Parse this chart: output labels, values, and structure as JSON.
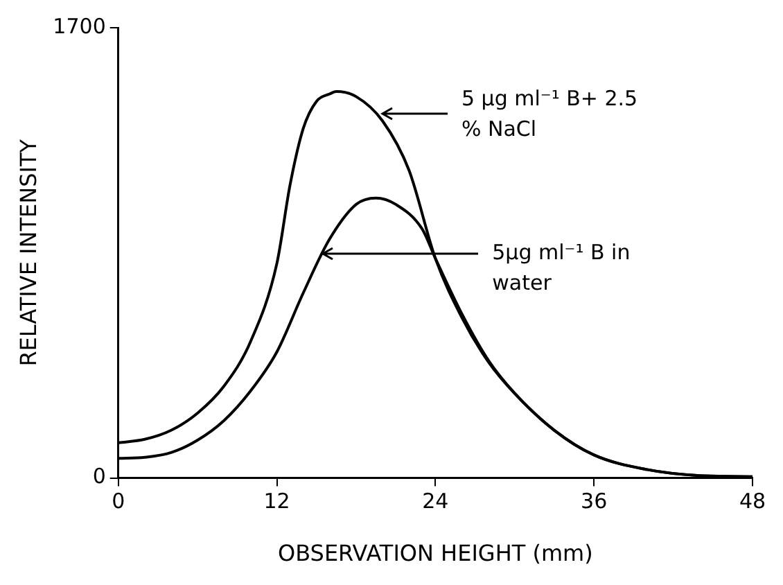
{
  "chart_data": {
    "type": "line",
    "xlabel": "OBSERVATION HEIGHT (mm)",
    "ylabel": "RELATIVE INTENSITY",
    "xlim": [
      0,
      48
    ],
    "xticks": [
      0,
      12,
      24,
      36,
      48
    ],
    "ylim": [
      0,
      1700
    ],
    "yticks": [
      0,
      1700
    ],
    "grid": false,
    "legend": false,
    "marker": "none",
    "line_style": "solid",
    "series": [
      {
        "color": "#000000",
        "x": [
          0,
          2,
          4,
          6,
          8,
          10,
          12,
          13,
          14,
          15,
          16,
          16.5,
          18,
          20,
          22,
          24,
          26,
          28,
          30,
          33,
          36,
          40,
          44,
          48
        ],
        "values": [
          133,
          146,
          180,
          245,
          347,
          514,
          810,
          1107,
          1320,
          1422,
          1450,
          1459,
          1440,
          1348,
          1162,
          829,
          606,
          439,
          319,
          180,
          87,
          32,
          9,
          5
        ]
      },
      {
        "color": "#000000",
        "x": [
          0,
          2,
          4,
          6,
          8,
          10,
          12,
          14,
          16,
          18,
          19.5,
          21,
          23,
          24,
          26,
          28,
          30,
          33,
          36,
          40,
          44,
          48
        ],
        "values": [
          74,
          78,
          96,
          143,
          217,
          328,
          476,
          699,
          903,
          1033,
          1057,
          1033,
          940,
          829,
          620,
          445,
          320,
          180,
          87,
          32,
          9,
          5
        ]
      }
    ],
    "annotations": [
      "5 µg ml⁻¹ B+ 2.5 % NaCl",
      {
        "text": "5µg ml⁻¹ B in water",
        "x": 15.5,
        "y": 847
      }
    ]
  }
}
